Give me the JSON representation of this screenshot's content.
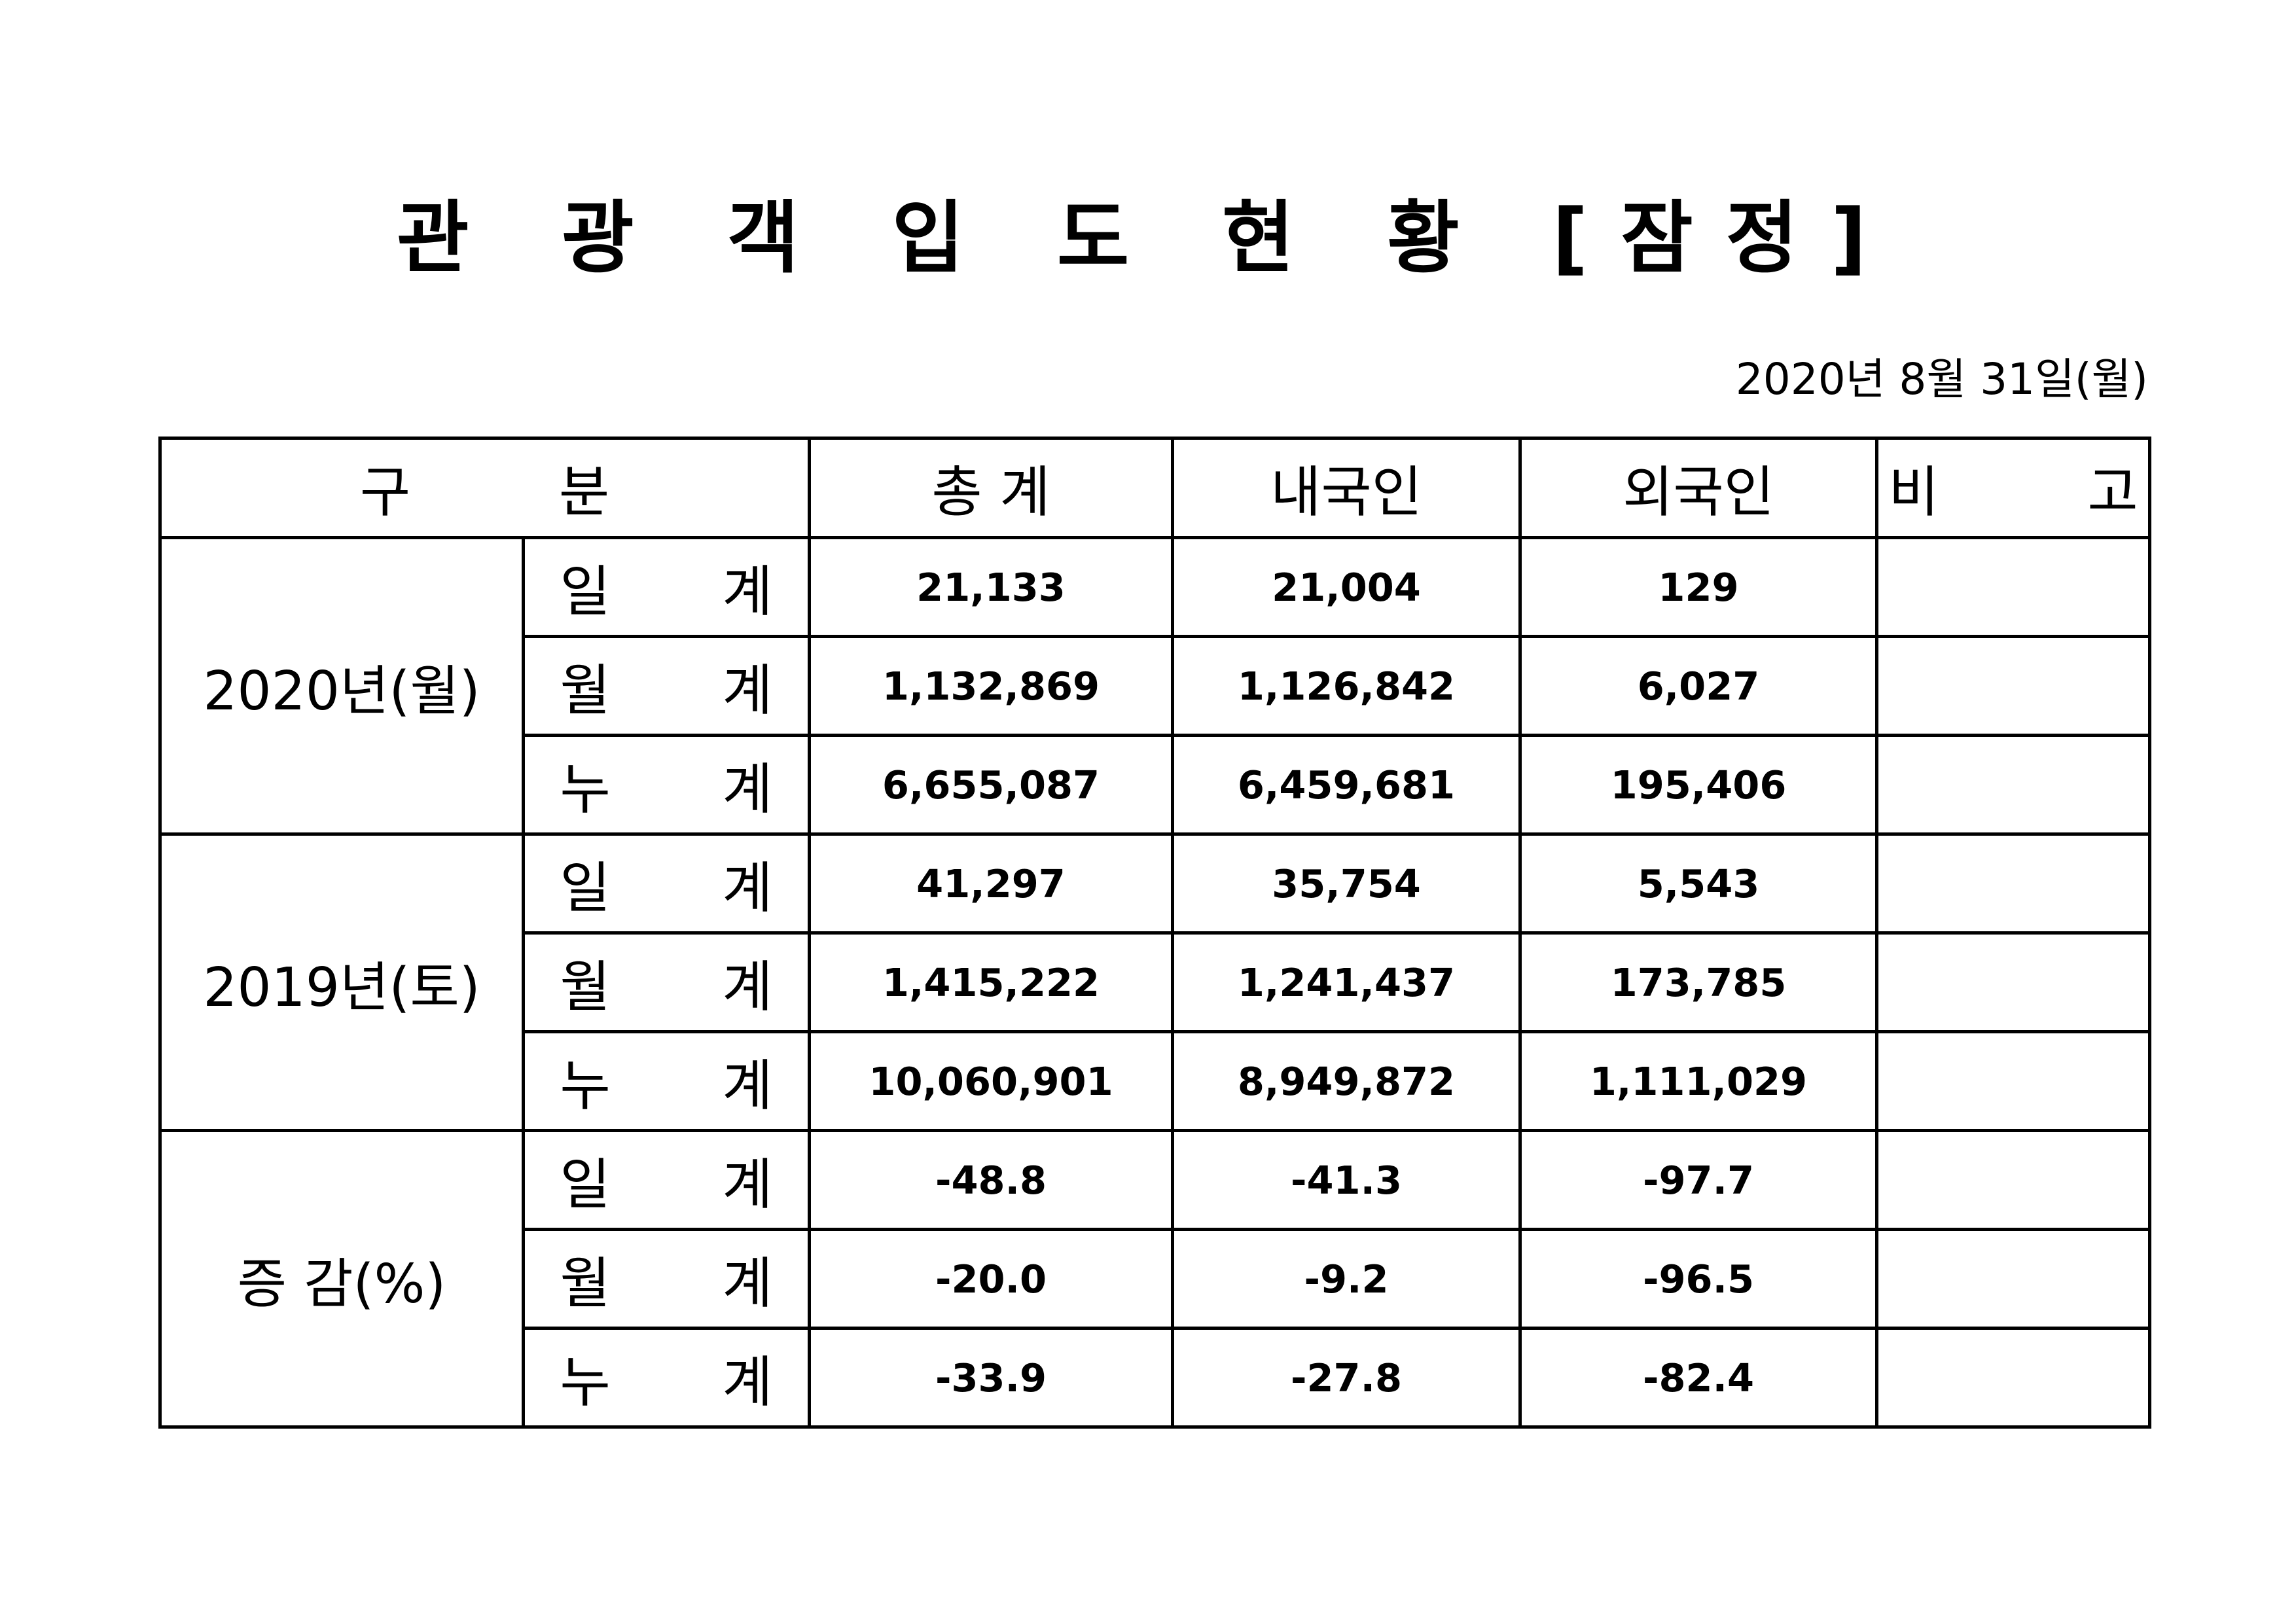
{
  "title": "관 광 객 입 도 현 황 [잠정]",
  "date": "2020년  8월  31일(월)",
  "header": {
    "category": "구 분",
    "total": "총   계",
    "domestic": "내국인",
    "foreign": "외국인",
    "remarks": "비 고"
  },
  "groups": [
    {
      "label": "2020년(월)",
      "rows": [
        {
          "label": "일 계",
          "total": "21,133",
          "domestic": "21,004",
          "foreign": "129",
          "remarks": ""
        },
        {
          "label": "월 계",
          "total": "1,132,869",
          "domestic": "1,126,842",
          "foreign": "6,027",
          "remarks": ""
        },
        {
          "label": "누 계",
          "total": "6,655,087",
          "domestic": "6,459,681",
          "foreign": "195,406",
          "remarks": ""
        }
      ]
    },
    {
      "label": "2019년(토)",
      "rows": [
        {
          "label": "일 계",
          "total": "41,297",
          "domestic": "35,754",
          "foreign": "5,543",
          "remarks": ""
        },
        {
          "label": "월 계",
          "total": "1,415,222",
          "domestic": "1,241,437",
          "foreign": "173,785",
          "remarks": ""
        },
        {
          "label": "누 계",
          "total": "10,060,901",
          "domestic": "8,949,872",
          "foreign": "1,111,029",
          "remarks": ""
        }
      ]
    },
    {
      "label": "증 감(%)",
      "rows": [
        {
          "label": "일 계",
          "total": "-48.8",
          "domestic": "-41.3",
          "foreign": "-97.7",
          "remarks": ""
        },
        {
          "label": "월 계",
          "total": "-20.0",
          "domestic": "-9.2",
          "foreign": "-96.5",
          "remarks": ""
        },
        {
          "label": "누 계",
          "total": "-33.9",
          "domestic": "-27.8",
          "foreign": "-82.4",
          "remarks": ""
        }
      ]
    }
  ]
}
